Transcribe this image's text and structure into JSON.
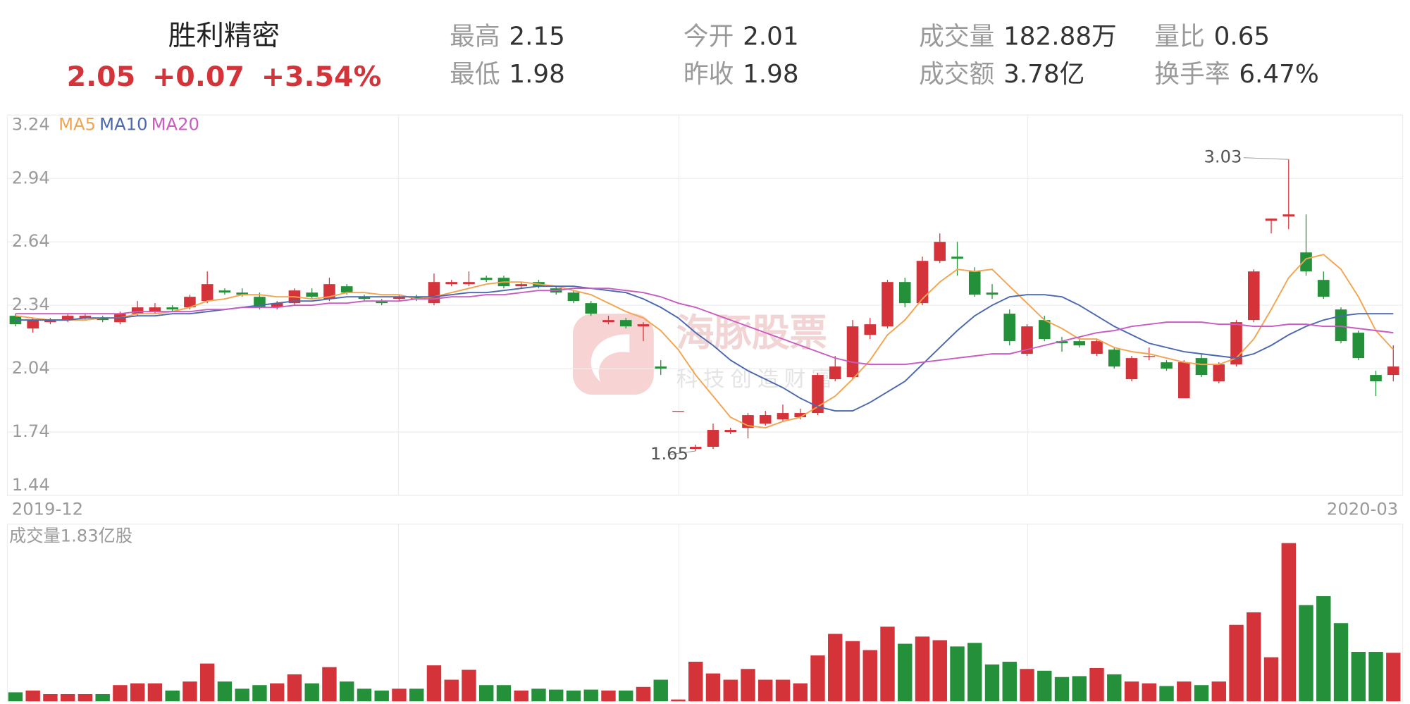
{
  "header": {
    "name": "胜利精密",
    "price": "2.05",
    "change": "+0.07",
    "change_pct": "+3.54%",
    "stats": [
      [
        {
          "label": "最高",
          "value": "2.15"
        },
        {
          "label": "最低",
          "value": "1.98"
        }
      ],
      [
        {
          "label": "今开",
          "value": "2.01"
        },
        {
          "label": "昨收",
          "value": "1.98"
        }
      ],
      [
        {
          "label": "成交量",
          "value": "182.88万"
        },
        {
          "label": "成交额",
          "value": "3.78亿"
        }
      ],
      [
        {
          "label": "量比",
          "value": "0.65"
        },
        {
          "label": "换手率",
          "value": "6.47%"
        }
      ]
    ]
  },
  "watermark": {
    "brand": "海豚股票",
    "slogan": "科技创造财富"
  },
  "chart_data": {
    "type": "candlestick",
    "categories": [
      "2019-12",
      null,
      null,
      null,
      null,
      null,
      null,
      null,
      null,
      null,
      null,
      null,
      null,
      null,
      null,
      null,
      null,
      null,
      null,
      null,
      null,
      null,
      null,
      null,
      null,
      null,
      null,
      null,
      null,
      null,
      null,
      null,
      null,
      null,
      null,
      null,
      null,
      null,
      null,
      null,
      null,
      null,
      null,
      null,
      null,
      null,
      null,
      null,
      null,
      null,
      null,
      null,
      null,
      null,
      null,
      null,
      null,
      null,
      null,
      null,
      null,
      null,
      null,
      null,
      null,
      null,
      null,
      null,
      null,
      null,
      null,
      null,
      null,
      null,
      null,
      null,
      null,
      null,
      null,
      "2020-03"
    ],
    "open": [
      2.29,
      2.23,
      2.26,
      2.27,
      2.28,
      2.28,
      2.26,
      2.3,
      2.31,
      2.33,
      2.33,
      2.36,
      2.41,
      2.4,
      2.38,
      2.33,
      2.35,
      2.4,
      2.37,
      2.43,
      2.38,
      2.36,
      2.37,
      2.38,
      2.35,
      2.44,
      2.44,
      2.47,
      2.47,
      2.43,
      2.45,
      2.42,
      2.4,
      2.35,
      2.26,
      2.27,
      2.24,
      2.05,
      1.84,
      1.66,
      1.67,
      1.74,
      1.76,
      1.78,
      1.8,
      1.81,
      1.83,
      1.99,
      2.0,
      2.2,
      2.24,
      2.45,
      2.35,
      2.55,
      2.57,
      2.5,
      2.4,
      2.3,
      2.11,
      2.27,
      2.17,
      2.17,
      2.11,
      2.13,
      1.99,
      2.1,
      2.07,
      1.9,
      2.09,
      1.98,
      2.06,
      2.27,
      2.74,
      2.76,
      2.59,
      2.46,
      2.32,
      2.21,
      2.01,
      2.01
    ],
    "high": [
      2.3,
      2.28,
      2.28,
      2.3,
      2.3,
      2.29,
      2.31,
      2.36,
      2.35,
      2.34,
      2.39,
      2.5,
      2.42,
      2.42,
      2.4,
      2.36,
      2.42,
      2.42,
      2.47,
      2.44,
      2.39,
      2.37,
      2.39,
      2.39,
      2.49,
      2.46,
      2.5,
      2.48,
      2.48,
      2.45,
      2.46,
      2.43,
      2.41,
      2.36,
      2.29,
      2.28,
      2.26,
      2.08,
      1.84,
      1.68,
      1.78,
      1.76,
      1.83,
      1.84,
      1.87,
      1.85,
      2.02,
      2.1,
      2.27,
      2.28,
      2.46,
      2.47,
      2.57,
      2.68,
      2.64,
      2.52,
      2.44,
      2.32,
      2.25,
      2.29,
      2.19,
      2.19,
      2.18,
      2.14,
      2.1,
      2.14,
      2.08,
      2.08,
      2.11,
      2.07,
      2.27,
      2.51,
      2.75,
      3.03,
      2.77,
      2.5,
      2.33,
      2.22,
      2.03,
      2.15
    ],
    "low": [
      2.24,
      2.21,
      2.25,
      2.26,
      2.27,
      2.26,
      2.25,
      2.29,
      2.3,
      2.31,
      2.32,
      2.35,
      2.39,
      2.38,
      2.32,
      2.32,
      2.34,
      2.37,
      2.36,
      2.39,
      2.36,
      2.34,
      2.36,
      2.36,
      2.34,
      2.43,
      2.43,
      2.45,
      2.42,
      2.42,
      2.42,
      2.39,
      2.35,
      2.29,
      2.25,
      2.23,
      2.17,
      2.01,
      1.84,
      1.65,
      1.66,
      1.73,
      1.71,
      1.77,
      1.79,
      1.8,
      1.82,
      1.98,
      1.99,
      2.18,
      2.23,
      2.33,
      2.34,
      2.54,
      2.48,
      2.38,
      2.37,
      2.15,
      2.1,
      2.17,
      2.12,
      2.14,
      2.1,
      2.04,
      1.98,
      2.08,
      2.03,
      1.9,
      2.0,
      1.97,
      2.05,
      2.26,
      2.68,
      2.7,
      2.48,
      2.37,
      2.16,
      2.08,
      1.91,
      1.98
    ],
    "close": [
      2.25,
      2.27,
      2.27,
      2.29,
      2.29,
      2.27,
      2.3,
      2.33,
      2.33,
      2.32,
      2.38,
      2.44,
      2.4,
      2.39,
      2.33,
      2.35,
      2.41,
      2.38,
      2.44,
      2.4,
      2.37,
      2.35,
      2.38,
      2.37,
      2.45,
      2.45,
      2.45,
      2.46,
      2.43,
      2.44,
      2.43,
      2.4,
      2.36,
      2.3,
      2.27,
      2.24,
      2.25,
      2.04,
      1.84,
      1.67,
      1.75,
      1.75,
      1.82,
      1.82,
      1.83,
      1.83,
      2.01,
      2.05,
      2.24,
      2.25,
      2.45,
      2.35,
      2.55,
      2.64,
      2.56,
      2.39,
      2.39,
      2.17,
      2.24,
      2.18,
      2.16,
      2.15,
      2.17,
      2.05,
      2.09,
      2.1,
      2.04,
      2.07,
      2.01,
      2.06,
      2.26,
      2.5,
      2.75,
      2.77,
      2.5,
      2.38,
      2.17,
      2.09,
      1.98,
      2.05
    ],
    "up_color": "#d5333a",
    "down_color": "#24913a",
    "ylim": [
      1.44,
      3.24
    ],
    "yticks": [
      1.44,
      1.74,
      2.04,
      2.34,
      2.64,
      2.94,
      3.24
    ],
    "grid": true,
    "series": [
      {
        "name": "MA5",
        "color": "#f3a44f",
        "values": [
          2.29,
          2.28,
          2.27,
          2.27,
          2.27,
          2.28,
          2.28,
          2.3,
          2.3,
          2.31,
          2.33,
          2.36,
          2.37,
          2.39,
          2.39,
          2.38,
          2.38,
          2.37,
          2.38,
          2.4,
          2.4,
          2.39,
          2.39,
          2.37,
          2.38,
          2.4,
          2.42,
          2.44,
          2.45,
          2.45,
          2.44,
          2.43,
          2.41,
          2.39,
          2.35,
          2.31,
          2.28,
          2.22,
          2.13,
          2.01,
          1.91,
          1.81,
          1.77,
          1.76,
          1.79,
          1.81,
          1.86,
          1.91,
          1.99,
          2.08,
          2.2,
          2.27,
          2.37,
          2.45,
          2.51,
          2.5,
          2.51,
          2.43,
          2.35,
          2.27,
          2.23,
          2.18,
          2.18,
          2.14,
          2.12,
          2.11,
          2.09,
          2.07,
          2.06,
          2.06,
          2.09,
          2.18,
          2.32,
          2.47,
          2.56,
          2.58,
          2.51,
          2.38,
          2.22,
          2.13
        ]
      },
      {
        "name": "MA10",
        "color": "#4a68b0",
        "values": [
          2.27,
          2.27,
          2.27,
          2.27,
          2.28,
          2.28,
          2.28,
          2.29,
          2.29,
          2.3,
          2.3,
          2.31,
          2.32,
          2.33,
          2.34,
          2.35,
          2.36,
          2.36,
          2.37,
          2.38,
          2.38,
          2.38,
          2.38,
          2.38,
          2.38,
          2.39,
          2.4,
          2.4,
          2.41,
          2.42,
          2.43,
          2.43,
          2.43,
          2.42,
          2.41,
          2.4,
          2.37,
          2.33,
          2.28,
          2.21,
          2.15,
          2.08,
          2.03,
          1.99,
          1.95,
          1.9,
          1.86,
          1.84,
          1.84,
          1.88,
          1.93,
          1.98,
          2.06,
          2.14,
          2.22,
          2.29,
          2.34,
          2.38,
          2.39,
          2.39,
          2.38,
          2.34,
          2.29,
          2.24,
          2.2,
          2.16,
          2.14,
          2.12,
          2.11,
          2.1,
          2.09,
          2.11,
          2.15,
          2.2,
          2.24,
          2.27,
          2.29,
          2.3,
          2.3,
          2.3
        ]
      },
      {
        "name": "MA20",
        "color": "#c95cc0",
        "values": [
          2.3,
          2.3,
          2.3,
          2.3,
          2.3,
          2.3,
          2.3,
          2.31,
          2.31,
          2.31,
          2.31,
          2.32,
          2.32,
          2.33,
          2.33,
          2.33,
          2.34,
          2.34,
          2.35,
          2.35,
          2.36,
          2.36,
          2.36,
          2.37,
          2.37,
          2.38,
          2.38,
          2.39,
          2.39,
          2.4,
          2.41,
          2.41,
          2.42,
          2.42,
          2.42,
          2.41,
          2.4,
          2.38,
          2.35,
          2.33,
          2.3,
          2.27,
          2.24,
          2.21,
          2.18,
          2.15,
          2.12,
          2.09,
          2.07,
          2.06,
          2.06,
          2.06,
          2.07,
          2.08,
          2.09,
          2.1,
          2.11,
          2.11,
          2.13,
          2.15,
          2.17,
          2.19,
          2.21,
          2.22,
          2.24,
          2.25,
          2.26,
          2.26,
          2.26,
          2.25,
          2.25,
          2.24,
          2.24,
          2.25,
          2.25,
          2.24,
          2.24,
          2.23,
          2.22,
          2.21
        ]
      }
    ],
    "volume": {
      "title": "成交量1.83亿股",
      "ylim": [
        0,
        66800
      ],
      "values": [
        3390,
        4070,
        2710,
        2710,
        2710,
        2710,
        6100,
        6780,
        6780,
        4070,
        7460,
        14240,
        7460,
        4750,
        6100,
        6780,
        10170,
        6780,
        12880,
        7460,
        4750,
        4070,
        4750,
        4750,
        13560,
        8140,
        11870,
        6100,
        6100,
        4070,
        4750,
        4410,
        4070,
        4410,
        4070,
        4070,
        5420,
        8140,
        680,
        14920,
        10510,
        8140,
        12200,
        8140,
        8140,
        6780,
        17290,
        25430,
        22710,
        19320,
        28140,
        21700,
        24410,
        23050,
        20680,
        22040,
        13900,
        14920,
        12200,
        11530,
        9150,
        9490,
        12540,
        10170,
        7460,
        6780,
        5760,
        7460,
        6100,
        7460,
        28820,
        33560,
        16610,
        59660,
        36270,
        39660,
        29490,
        18650,
        18650,
        18288
      ]
    }
  }
}
